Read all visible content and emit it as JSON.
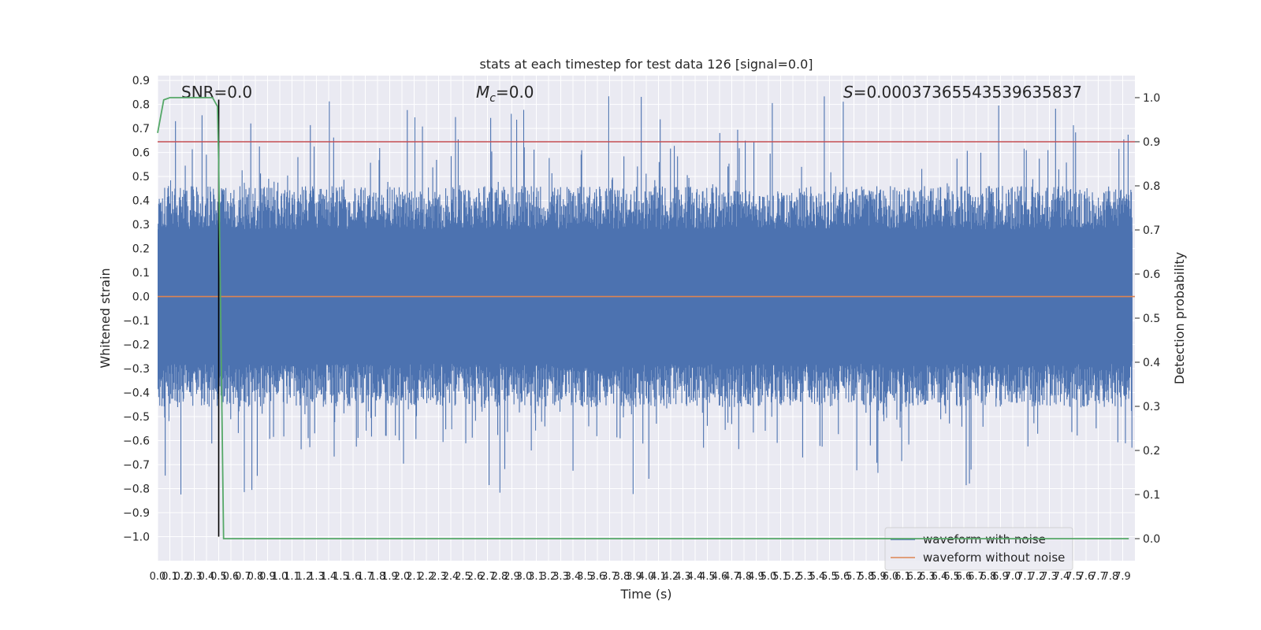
{
  "chart_data": {
    "type": "line",
    "title": "stats at each timestep for test data 126 [signal=0.0]",
    "xlabel": "Time (s)",
    "ylabel": "Whitened strain",
    "y2label": "Detection probability",
    "xlim": [
      0.0,
      8.0
    ],
    "ylim": [
      -1.1,
      0.92
    ],
    "y2lim": [
      -0.05,
      1.05
    ],
    "xticks": [
      0.0,
      0.1,
      0.2,
      0.3,
      0.4,
      0.5,
      0.6,
      0.7,
      0.8,
      0.9,
      1.0,
      1.1,
      1.2,
      1.3,
      1.4,
      1.5,
      1.6,
      1.7,
      1.8,
      1.9,
      2.0,
      2.1,
      2.2,
      2.3,
      2.4,
      2.5,
      2.6,
      2.7,
      2.8,
      2.9,
      3.0,
      3.1,
      3.2,
      3.3,
      3.4,
      3.5,
      3.6,
      3.7,
      3.8,
      3.9,
      4.0,
      4.1,
      4.2,
      4.3,
      4.4,
      4.5,
      4.6,
      4.7,
      4.8,
      4.9,
      5.0,
      5.1,
      5.2,
      5.3,
      5.4,
      5.5,
      5.6,
      5.7,
      5.8,
      5.9,
      6.0,
      6.1,
      6.2,
      6.3,
      6.4,
      6.5,
      6.6,
      6.7,
      6.8,
      6.9,
      7.0,
      7.1,
      7.2,
      7.3,
      7.4,
      7.5,
      7.6,
      7.7,
      7.8,
      7.9
    ],
    "yticks": [
      0.9,
      0.8,
      0.7,
      0.6,
      0.5,
      0.4,
      0.3,
      0.2,
      0.1,
      0.0,
      -0.1,
      -0.2,
      -0.3,
      -0.4,
      -0.5,
      -0.6,
      -0.7,
      -0.8,
      -0.9,
      -1.0
    ],
    "y2ticks": [
      1.0,
      0.9,
      0.8,
      0.7,
      0.6,
      0.5,
      0.4,
      0.3,
      0.2,
      0.1,
      0.0
    ],
    "grid": true,
    "legend_position": "lower-right",
    "annotations": {
      "snr": "SNR=0.0",
      "mc_symbol": "M",
      "mc_sub": "c",
      "mc_value": "=0.0",
      "s_symbol": "S",
      "s_value": "=0.00037365543539635837"
    },
    "series": [
      {
        "name": "waveform with noise",
        "color": "#4c72b0",
        "style": "noise",
        "amplitude_typical": 0.28,
        "amplitude_peak": 0.84
      },
      {
        "name": "waveform without noise",
        "color": "#dd8452",
        "y_constant": 0.0
      }
    ],
    "detection_probability": {
      "color": "#55a868",
      "x": [
        0.0,
        0.05,
        0.1,
        0.15,
        0.2,
        0.3,
        0.4,
        0.45,
        0.49,
        0.5,
        0.54,
        0.6,
        1.0,
        2.0,
        3.0,
        4.0,
        5.0,
        6.0,
        7.0,
        7.95
      ],
      "y": [
        0.92,
        0.995,
        1.0,
        1.0,
        1.0,
        1.0,
        1.0,
        1.0,
        0.98,
        0.85,
        0.0,
        0.0,
        0.0,
        0.0,
        0.0,
        0.0,
        0.0,
        0.0,
        0.0,
        0.0
      ]
    },
    "threshold": {
      "y2": 0.9,
      "color": "#c44e52"
    },
    "marker_line": {
      "x": 0.5,
      "y_from": -1.0,
      "y_to": 0.82,
      "color": "#000000"
    },
    "background": "#eaeaf2",
    "gridcolor": "#ffffff"
  }
}
